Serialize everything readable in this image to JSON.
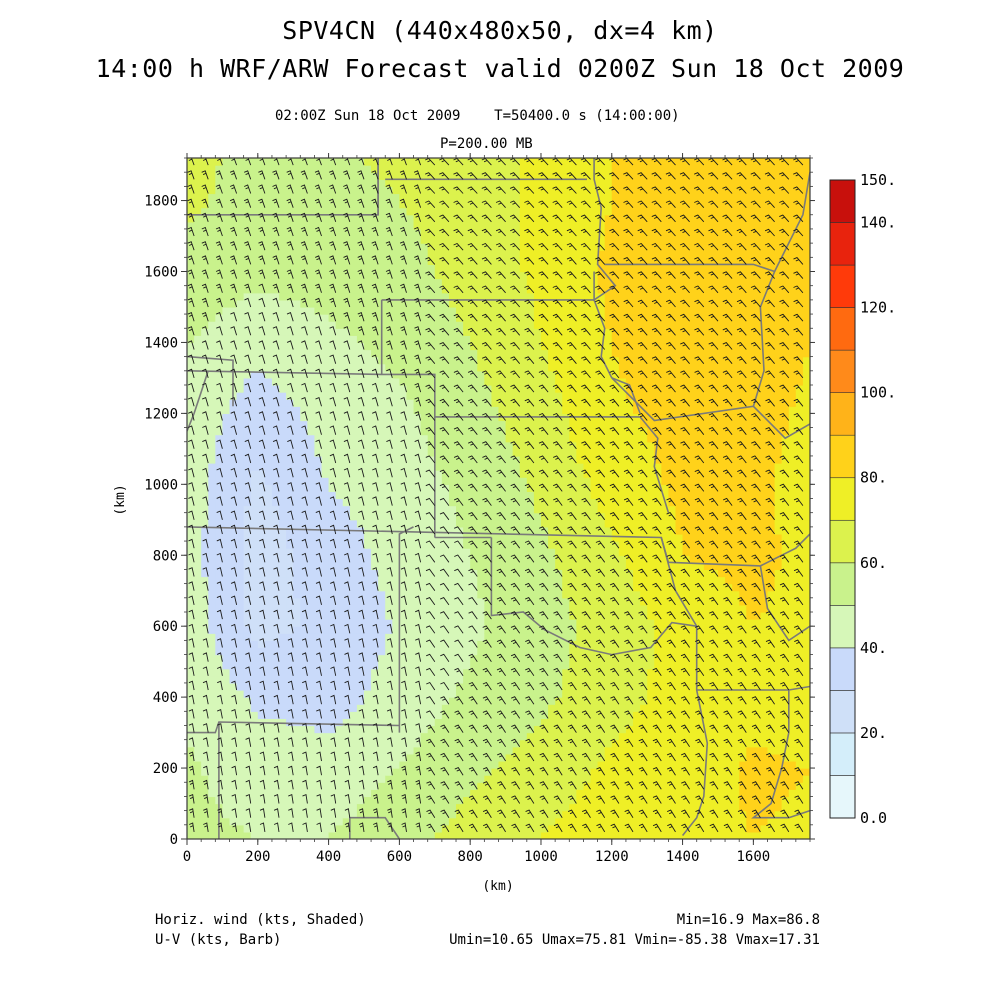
{
  "header": {
    "title_line1": "SPV4CN (440x480x50, dx=4 km)",
    "title_line2": "14:00 h WRF/ARW Forecast valid 0200Z Sun 18 Oct 2009",
    "subtitle_time": "02:00Z Sun 18 Oct 2009    T=50400.0 s (14:00:00)",
    "subtitle_level": "P=200.00 MB"
  },
  "footer": {
    "left_line1": "Horiz. wind (kts, Shaded)",
    "left_line2": "U-V (kts, Barb)",
    "right_line1": "Min=16.9 Max=86.8",
    "right_line2": "Umin=10.65 Umax=75.81 Vmin=-85.38 Vmax=17.31"
  },
  "colors": {
    "border": "#3a3a3a",
    "map_lines": "#7a7a7a",
    "barbs": "#1a1a1a"
  },
  "chart_data": {
    "type": "heatmap",
    "xlabel": "(km)",
    "ylabel": "(km)",
    "xlim": [
      0,
      1760
    ],
    "ylim": [
      0,
      1920
    ],
    "x_ticks": [
      0,
      200,
      400,
      600,
      800,
      1000,
      1200,
      1400,
      1600
    ],
    "y_ticks": [
      0,
      200,
      400,
      600,
      800,
      1000,
      1200,
      1400,
      1600,
      1800
    ],
    "x_tick_labels": [
      "0",
      "200",
      "400",
      "600",
      "800",
      "1000",
      "1200",
      "1400",
      "1600"
    ],
    "y_tick_labels": [
      "0",
      "200",
      "400",
      "600",
      "800",
      "1000",
      "1200",
      "1400",
      "1600",
      "1800"
    ],
    "colorbar": {
      "levels": [
        0,
        10,
        20,
        30,
        40,
        50,
        60,
        70,
        80,
        90,
        100,
        110,
        120,
        130,
        140,
        150
      ],
      "colors": [
        "#e6f7fb",
        "#d4eefa",
        "#cfe0f8",
        "#c9dafa",
        "#d6f7b8",
        "#c9f28c",
        "#dcf24d",
        "#efef26",
        "#ffd21a",
        "#ffb319",
        "#ff8a1a",
        "#ff6a10",
        "#ff3a0a",
        "#e8230d",
        "#c8100c",
        "#a30808"
      ],
      "label_values": [
        0,
        20,
        40,
        60,
        80,
        100,
        120,
        140,
        150
      ],
      "labels": [
        "0.0",
        "20.",
        "40.",
        "60.",
        "80.",
        "100.",
        "120.",
        "140.",
        "150."
      ]
    },
    "wind_speed_kts": {
      "grid_x": [
        0,
        200,
        400,
        600,
        800,
        1000,
        1200,
        1400,
        1600,
        1760
      ],
      "grid_y": [
        0,
        200,
        400,
        600,
        800,
        1000,
        1200,
        1400,
        1600,
        1800,
        1920
      ],
      "values": [
        [
          52,
          50,
          50,
          56,
          64,
          70,
          76,
          78,
          80,
          79
        ],
        [
          51,
          46,
          44,
          50,
          58,
          64,
          72,
          77,
          81,
          80
        ],
        [
          49,
          38,
          36,
          44,
          52,
          58,
          66,
          74,
          78,
          76
        ],
        [
          46,
          27,
          32,
          41,
          48,
          56,
          64,
          74,
          80,
          78
        ],
        [
          44,
          26,
          34,
          44,
          50,
          58,
          68,
          80,
          82,
          78
        ],
        [
          45,
          28,
          40,
          46,
          52,
          62,
          74,
          82,
          82,
          76
        ],
        [
          47,
          34,
          44,
          48,
          56,
          66,
          78,
          84,
          84,
          78
        ],
        [
          50,
          44,
          48,
          52,
          60,
          70,
          80,
          86,
          87,
          80
        ],
        [
          56,
          52,
          54,
          56,
          64,
          72,
          82,
          86,
          86,
          82
        ],
        [
          62,
          56,
          56,
          60,
          66,
          72,
          80,
          84,
          84,
          82
        ],
        [
          62,
          58,
          58,
          62,
          66,
          72,
          80,
          82,
          82,
          80
        ]
      ]
    }
  }
}
